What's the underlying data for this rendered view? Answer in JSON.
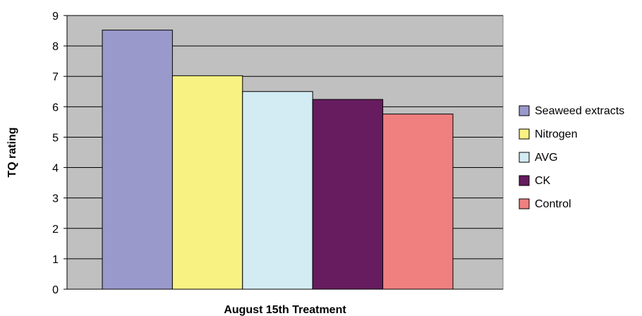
{
  "chart_data": {
    "type": "bar",
    "title": "",
    "xlabel": "August 15th Treatment",
    "ylabel": "TQ rating",
    "ylim": [
      0,
      9
    ],
    "yticks": [
      0,
      1,
      2,
      3,
      4,
      5,
      6,
      7,
      8,
      9
    ],
    "grid": true,
    "legend_position": "right",
    "plot_background": "#c0c0c0",
    "categories": [
      "August 15th Treatment"
    ],
    "series": [
      {
        "name": "Seaweed extracts",
        "values": [
          8.52
        ],
        "color": "#9999cc"
      },
      {
        "name": "Nitrogen",
        "values": [
          7.02
        ],
        "color": "#f8f283"
      },
      {
        "name": "AVG",
        "values": [
          6.5
        ],
        "color": "#d3ecf4"
      },
      {
        "name": "CK",
        "values": [
          6.24
        ],
        "color": "#661c5e"
      },
      {
        "name": "Control",
        "values": [
          5.76
        ],
        "color": "#f08080"
      }
    ]
  }
}
